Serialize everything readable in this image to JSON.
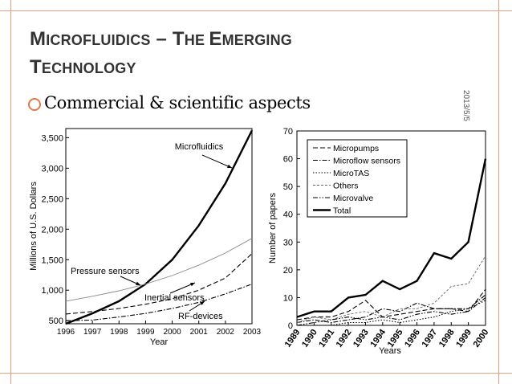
{
  "slide": {
    "title_line1_big": "M",
    "title_line1_rest": "ICROFLUIDICS",
    "title_dash": " – ",
    "title_the_big": "T",
    "title_the_rest": "HE ",
    "title_emerging_big": "E",
    "title_emerging_rest": "MERGING",
    "title_line2_big": "T",
    "title_line2_rest": "ECHNOLOGY",
    "bullet": "Commercial & scientific aspects",
    "date": "2013/5/5",
    "accent_color": "#e07a4d"
  },
  "chart_data": [
    {
      "type": "line",
      "xlabel": "Year",
      "ylabel": "Millions of U.S. Dollars",
      "x": [
        1996,
        1997,
        1998,
        1999,
        2000,
        2001,
        2002,
        2003
      ],
      "x_tick_labels": [
        "1996",
        "1997",
        "1998",
        "1999",
        "2000",
        "2001",
        "2002",
        "2003"
      ],
      "y_tick_values": [
        500,
        1000,
        1500,
        2000,
        2500,
        3000,
        3500
      ],
      "y_tick_labels": [
        "500",
        "1,000",
        "1,500",
        "2,000",
        "2,500",
        "3,000",
        "3,500"
      ],
      "xlim": [
        1996,
        2003
      ],
      "ylim": [
        450,
        3650
      ],
      "grid": false,
      "series": [
        {
          "name": "Microfluidics",
          "style": "solid-bold",
          "values": [
            450,
            620,
            820,
            1100,
            1500,
            2060,
            2750,
            3620
          ]
        },
        {
          "name": "Pressure sensors",
          "style": "solid-thin",
          "values": [
            820,
            900,
            990,
            1100,
            1240,
            1410,
            1610,
            1850
          ]
        },
        {
          "name": "Inertial sensors",
          "style": "dashed",
          "values": [
            610,
            650,
            700,
            770,
            860,
            1000,
            1200,
            1600
          ]
        },
        {
          "name": "RF-devices",
          "style": "dash-dot",
          "values": [
            500,
            510,
            560,
            620,
            700,
            800,
            940,
            1100
          ]
        }
      ]
    },
    {
      "type": "line",
      "xlabel": "Years",
      "ylabel": "Number of papers",
      "x": [
        1989,
        1990,
        1991,
        1992,
        1993,
        1994,
        1995,
        1996,
        1997,
        1998,
        1999,
        2000
      ],
      "x_tick_labels": [
        "1989",
        "1990",
        "1991",
        "1992",
        "1993",
        "1994",
        "1995",
        "1996",
        "1997",
        "1998",
        "1999",
        "2000"
      ],
      "y_tick_values": [
        0,
        10,
        20,
        30,
        40,
        50,
        60,
        70
      ],
      "y_tick_labels": [
        "0",
        "10",
        "20",
        "30",
        "40",
        "50",
        "60",
        "70"
      ],
      "xlim": [
        1989,
        2000
      ],
      "ylim": [
        0,
        70
      ],
      "grid": false,
      "legend_placement": "top-left",
      "series": [
        {
          "name": "Micropumps",
          "style": "dashed",
          "values": [
            2,
            3,
            3,
            5,
            9,
            3,
            4,
            5,
            6,
            6,
            5,
            13
          ]
        },
        {
          "name": "Microflow sensors",
          "style": "dash-dot",
          "values": [
            1,
            2,
            1,
            2,
            3,
            6,
            5,
            8,
            6,
            6,
            6,
            11
          ]
        },
        {
          "name": "MicroTAS",
          "style": "dotted",
          "values": [
            0,
            0,
            0,
            1,
            1,
            2,
            1,
            2,
            3,
            5,
            6,
            9
          ]
        },
        {
          "name": "Others",
          "style": "fine-dashed",
          "values": [
            1,
            3,
            2,
            4,
            5,
            3,
            6,
            6,
            8,
            14,
            15,
            25
          ]
        },
        {
          "name": "Microvalve",
          "style": "dash-dot-dot",
          "values": [
            0,
            1,
            2,
            3,
            2,
            3,
            2,
            4,
            5,
            4,
            5,
            10
          ]
        },
        {
          "name": "Total",
          "style": "solid-bold",
          "values": [
            3,
            5,
            5,
            10,
            11,
            16,
            13,
            16,
            26,
            24,
            30,
            60
          ]
        }
      ]
    }
  ]
}
